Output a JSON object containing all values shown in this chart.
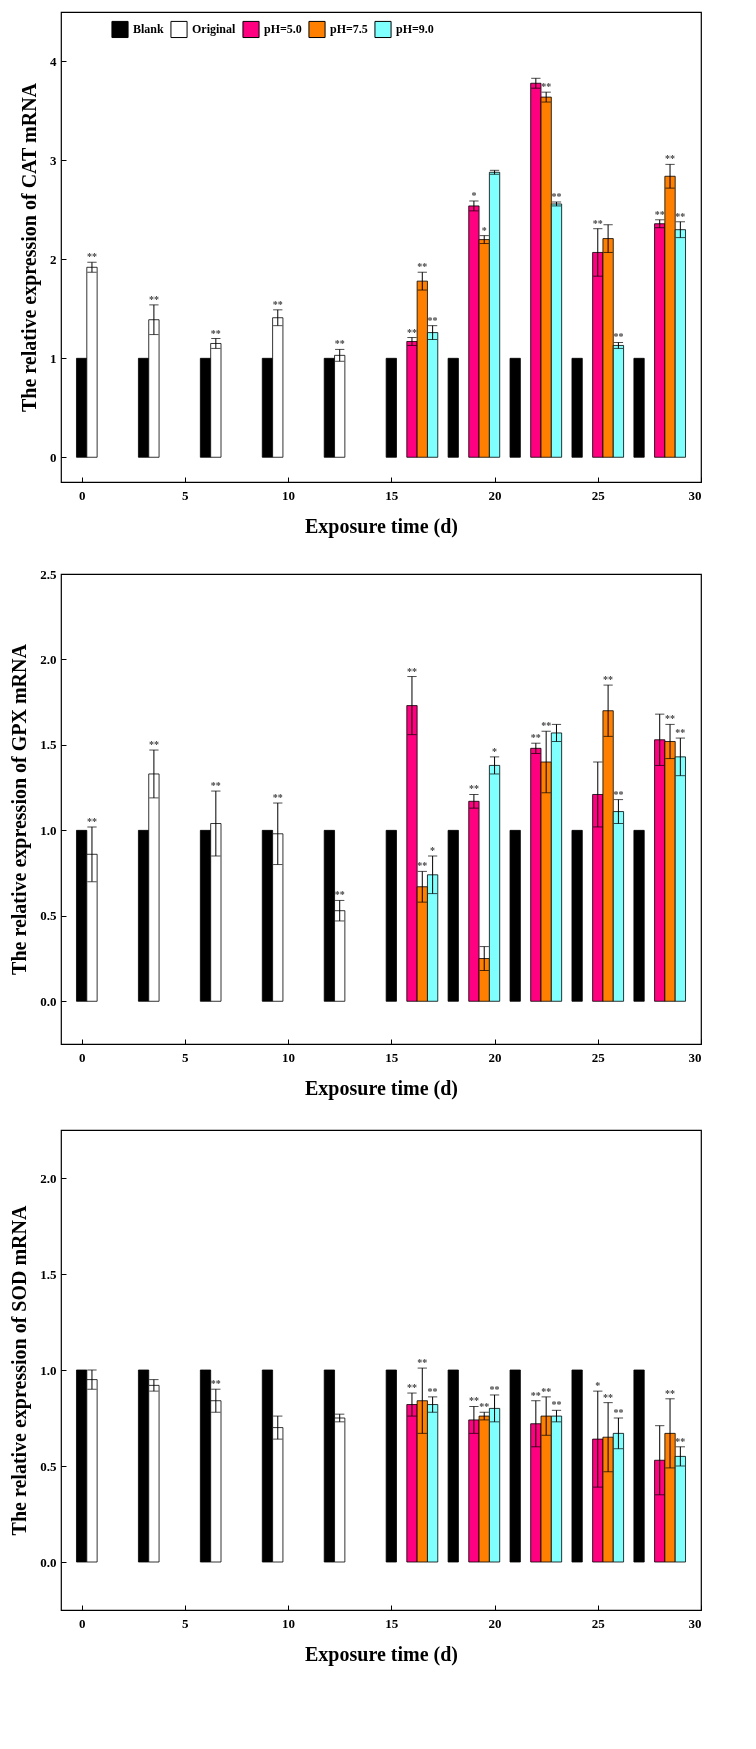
{
  "chart_data": [
    {
      "type": "bar",
      "xlabel": "Exposure time (d)",
      "ylabel": "The relative expression of CAT mRNA",
      "xlim": [
        -1,
        30
      ],
      "xticks": [
        0,
        5,
        10,
        15,
        20,
        25,
        30
      ],
      "ylim": [
        -0.25,
        4.5
      ],
      "yticks": [
        0,
        1,
        2,
        3,
        4
      ],
      "grid": false,
      "legend": "top",
      "series": [
        {
          "name": "Blank",
          "color": "#000000",
          "x": [
            0,
            3,
            6,
            9,
            12,
            15,
            18,
            21,
            24,
            27
          ],
          "values": [
            1,
            1,
            1,
            1,
            1,
            1,
            1,
            1,
            1,
            1
          ]
        },
        {
          "name": "Original",
          "color": "#ffffff",
          "x": [
            0.5,
            3.5,
            6.5,
            9.5,
            12.5
          ],
          "values": [
            1.92,
            1.39,
            1.15,
            1.41,
            1.03
          ],
          "errors": [
            0.05,
            0.15,
            0.05,
            0.08,
            0.06
          ]
        },
        {
          "name": "pH=5.0",
          "color": "#ff0080",
          "x": [
            16,
            19,
            22,
            25,
            28
          ],
          "values": [
            1.17,
            2.54,
            3.78,
            2.07,
            2.36
          ],
          "errors": [
            0.04,
            0.05,
            0.05,
            0.24,
            0.04
          ]
        },
        {
          "name": "pH=7.5",
          "color": "#ff8000",
          "x": [
            16.5,
            19.5,
            22.5,
            25.5,
            28.5
          ],
          "values": [
            1.78,
            2.2,
            3.64,
            2.21,
            2.84
          ],
          "errors": [
            0.09,
            0.04,
            0.05,
            0.14,
            0.12
          ]
        },
        {
          "name": "pH=9.0",
          "color": "#80ffff",
          "x": [
            17,
            20,
            23,
            26,
            29
          ],
          "values": [
            1.26,
            2.88,
            2.56,
            1.13,
            2.3
          ],
          "errors": [
            0.07,
            0.02,
            0.02,
            0.03,
            0.08
          ]
        }
      ],
      "annotations": [
        {
          "text": "**",
          "x": 0.5,
          "y": 1.97
        },
        {
          "text": "**",
          "x": 3.5,
          "y": 1.54
        },
        {
          "text": "**",
          "x": 6.5,
          "y": 1.2
        },
        {
          "text": "**",
          "x": 9.5,
          "y": 1.49
        },
        {
          "text": "**",
          "x": 12.5,
          "y": 1.09
        },
        {
          "text": "**",
          "x": 16,
          "y": 1.21
        },
        {
          "text": "*",
          "x": 19,
          "y": 2.59
        },
        {
          "text": "**",
          "x": 25,
          "y": 2.31
        },
        {
          "text": "**",
          "x": 28,
          "y": 2.4
        },
        {
          "text": "**",
          "x": 16.5,
          "y": 1.87
        },
        {
          "text": "*",
          "x": 19.5,
          "y": 2.24
        },
        {
          "text": "**",
          "x": 22.5,
          "y": 3.69
        },
        {
          "text": "**",
          "x": 28.5,
          "y": 2.96
        },
        {
          "text": "**",
          "x": 17,
          "y": 1.33
        },
        {
          "text": "**",
          "x": 23,
          "y": 2.58
        },
        {
          "text": "**",
          "x": 26,
          "y": 1.16
        },
        {
          "text": "**",
          "x": 29,
          "y": 2.38
        }
      ]
    },
    {
      "type": "bar",
      "xlabel": "Exposure time (d)",
      "ylabel": "The relative expression of GPX mRNA",
      "xlim": [
        -1,
        30
      ],
      "xticks": [
        0,
        5,
        10,
        15,
        20,
        25,
        30
      ],
      "ylim": [
        -0.25,
        2.5
      ],
      "yticks": [
        {
          "value": 0,
          "label": "0.0"
        },
        {
          "value": 0.5,
          "label": "0.5"
        },
        {
          "value": 1,
          "label": "1.0"
        },
        {
          "value": 1.5,
          "label": "1.5"
        },
        {
          "value": 2,
          "label": "2.0"
        },
        {
          "value": 2.5,
          "label": "2.5"
        }
      ],
      "grid": false,
      "legend": "top",
      "series": [
        {
          "name": "Blank",
          "color": "#000000",
          "x": [
            0,
            3,
            6,
            9,
            12,
            15,
            18,
            21,
            24,
            27
          ],
          "values": [
            1,
            1,
            1,
            1,
            1,
            1,
            1,
            1,
            1,
            1
          ]
        },
        {
          "name": "Original",
          "color": "#ffffff",
          "x": [
            0.5,
            3.5,
            6.5,
            9.5,
            12.5
          ],
          "values": [
            0.86,
            1.33,
            1.04,
            0.98,
            0.53
          ],
          "errors": [
            0.16,
            0.14,
            0.19,
            0.18,
            0.06
          ]
        },
        {
          "name": "pH=5.0",
          "color": "#ff0080",
          "x": [
            16,
            19,
            22,
            25,
            28
          ],
          "values": [
            1.73,
            1.17,
            1.48,
            1.21,
            1.53
          ],
          "errors": [
            0.17,
            0.04,
            0.03,
            0.19,
            0.15
          ]
        },
        {
          "name": "pH=7.5",
          "color": "#ff8000",
          "x": [
            16.5,
            19.5,
            22.5,
            25.5,
            28.5
          ],
          "values": [
            0.67,
            0.25,
            1.4,
            1.7,
            1.52
          ],
          "errors": [
            0.09,
            0.07,
            0.18,
            0.15,
            0.1
          ]
        },
        {
          "name": "pH=9.0",
          "color": "#80ffff",
          "x": [
            17,
            20,
            23,
            26,
            29
          ],
          "values": [
            0.74,
            1.38,
            1.57,
            1.11,
            1.43
          ],
          "errors": [
            0.11,
            0.05,
            0.05,
            0.07,
            0.11
          ]
        }
      ],
      "annotations": [
        {
          "text": "**",
          "x": 0.5,
          "y": 1.02
        },
        {
          "text": "**",
          "x": 3.5,
          "y": 1.47
        },
        {
          "text": "**",
          "x": 6.5,
          "y": 1.23
        },
        {
          "text": "**",
          "x": 9.5,
          "y": 1.16
        },
        {
          "text": "**",
          "x": 12.5,
          "y": 0.59
        },
        {
          "text": "**",
          "x": 16,
          "y": 1.9
        },
        {
          "text": "**",
          "x": 19,
          "y": 1.21
        },
        {
          "text": "**",
          "x": 22,
          "y": 1.51
        },
        {
          "text": "**",
          "x": 16.5,
          "y": 0.76
        },
        {
          "text": "**",
          "x": 22.5,
          "y": 1.58
        },
        {
          "text": "**",
          "x": 25.5,
          "y": 1.85
        },
        {
          "text": "**",
          "x": 28.5,
          "y": 1.62
        },
        {
          "text": "*",
          "x": 17,
          "y": 0.85
        },
        {
          "text": "*",
          "x": 20,
          "y": 1.43
        },
        {
          "text": "**",
          "x": 26,
          "y": 1.18
        },
        {
          "text": "**",
          "x": 29,
          "y": 1.54
        }
      ]
    },
    {
      "type": "bar",
      "xlabel": "Exposure time (d)",
      "ylabel": "The relative expression of SOD mRNA",
      "xlim": [
        -1,
        30
      ],
      "xticks": [
        0,
        5,
        10,
        15,
        20,
        25,
        30
      ],
      "ylim": [
        -0.25,
        2.25
      ],
      "yticks": [
        {
          "value": 0,
          "label": "0.0"
        },
        {
          "value": 0.5,
          "label": "0.5"
        },
        {
          "value": 1,
          "label": "1.0"
        },
        {
          "value": 1.5,
          "label": "1.5"
        },
        {
          "value": 2,
          "label": "2.0"
        }
      ],
      "grid": false,
      "legend": "top",
      "series": [
        {
          "name": "Blank",
          "color": "#000000",
          "x": [
            0,
            3,
            6,
            9,
            12,
            15,
            18,
            21,
            24,
            27
          ],
          "values": [
            1,
            1,
            1,
            1,
            1,
            1,
            1,
            1,
            1,
            1
          ]
        },
        {
          "name": "Original",
          "color": "#ffffff",
          "x": [
            0.5,
            3.5,
            6.5,
            9.5,
            12.5
          ],
          "values": [
            0.95,
            0.92,
            0.84,
            0.7,
            0.75
          ],
          "errors": [
            0.05,
            0.03,
            0.06,
            0.06,
            0.02
          ]
        },
        {
          "name": "pH=5.0",
          "color": "#ff0080",
          "x": [
            16,
            19,
            22,
            25,
            28
          ],
          "values": [
            0.82,
            0.74,
            0.72,
            0.64,
            0.53
          ],
          "errors": [
            0.06,
            0.07,
            0.12,
            0.25,
            0.18
          ]
        },
        {
          "name": "pH=7.5",
          "color": "#ff8000",
          "x": [
            16.5,
            19.5,
            22.5,
            25.5,
            28.5
          ],
          "values": [
            0.84,
            0.76,
            0.76,
            0.65,
            0.67
          ],
          "errors": [
            0.17,
            0.02,
            0.1,
            0.18,
            0.18
          ]
        },
        {
          "name": "pH=9.0",
          "color": "#80ffff",
          "x": [
            17,
            20,
            23,
            26,
            29
          ],
          "values": [
            0.82,
            0.8,
            0.76,
            0.67,
            0.55
          ],
          "errors": [
            0.04,
            0.07,
            0.03,
            0.08,
            0.05
          ]
        }
      ],
      "annotations": [
        {
          "text": "**",
          "x": 6.5,
          "y": 0.9
        },
        {
          "text": "**",
          "x": 16,
          "y": 0.88
        },
        {
          "text": "**",
          "x": 19,
          "y": 0.81
        },
        {
          "text": "**",
          "x": 22,
          "y": 0.84
        },
        {
          "text": "*",
          "x": 25,
          "y": 0.89
        },
        {
          "text": "**",
          "x": 16.5,
          "y": 1.01
        },
        {
          "text": "**",
          "x": 19.5,
          "y": 0.78
        },
        {
          "text": "**",
          "x": 22.5,
          "y": 0.86
        },
        {
          "text": "**",
          "x": 25.5,
          "y": 0.83
        },
        {
          "text": "**",
          "x": 28.5,
          "y": 0.85
        },
        {
          "text": "**",
          "x": 17,
          "y": 0.86
        },
        {
          "text": "**",
          "x": 20,
          "y": 0.87
        },
        {
          "text": "**",
          "x": 23,
          "y": 0.79
        },
        {
          "text": "**",
          "x": 26,
          "y": 0.75
        },
        {
          "text": "**",
          "x": 29,
          "y": 0.6
        }
      ]
    }
  ]
}
